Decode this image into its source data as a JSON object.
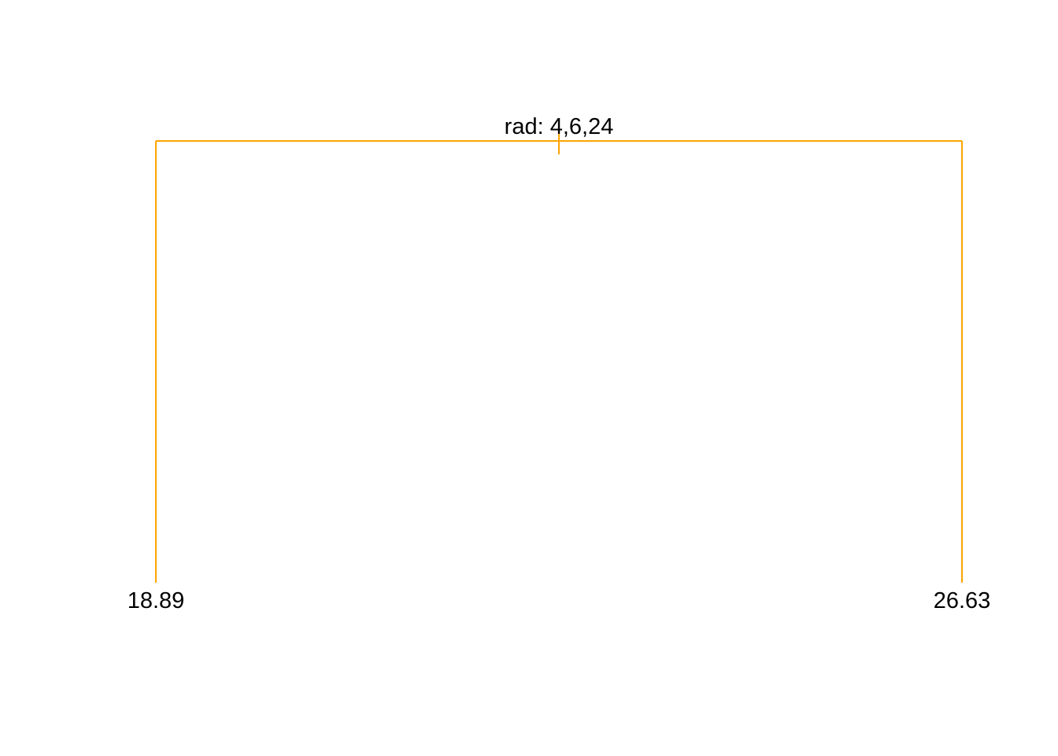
{
  "tree": {
    "line_color": "#FFA500",
    "root": {
      "split_label": "rad: 4,6,24"
    },
    "leaves": [
      {
        "value": "18.89"
      },
      {
        "value": "26.63"
      }
    ]
  }
}
